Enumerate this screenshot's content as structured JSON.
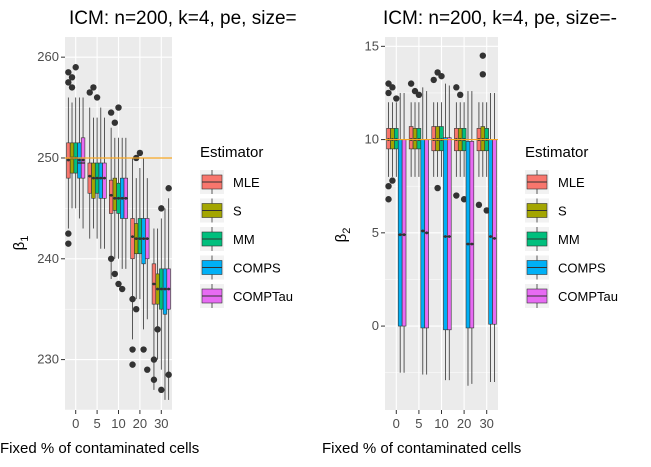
{
  "chart_data": [
    {
      "type": "box",
      "title": "ICM: n=200, k=4, pe, size=",
      "xlabel": "Fixed % of contaminated cells",
      "ylabel_base": "β",
      "ylabel_sub": "1",
      "categories": [
        "0",
        "5",
        "10",
        "20",
        "30"
      ],
      "ylim": [
        225,
        262
      ],
      "yticks": [
        230,
        240,
        250,
        260
      ],
      "true_value": 250,
      "legend_title": "Estimator",
      "series": [
        {
          "name": "MLE",
          "color": "#F8766D",
          "boxes": [
            {
              "q1": 248.0,
              "median": 249.8,
              "q3": 251.5,
              "lo": 243,
              "hi": 256,
              "mean": 249.8,
              "outliers": [
                258.5,
                257.5,
                242.5,
                241.5
              ]
            },
            {
              "q1": 246.5,
              "median": 248.2,
              "q3": 249.5,
              "lo": 242,
              "hi": 255,
              "mean": 248.2,
              "outliers": [
                256.5
              ]
            },
            {
              "q1": 244.5,
              "median": 246.3,
              "q3": 247.8,
              "lo": 238,
              "hi": 253,
              "mean": 246.3,
              "outliers": [
                254.5,
                240
              ]
            },
            {
              "q1": 240.0,
              "median": 242.2,
              "q3": 244.0,
              "lo": 232,
              "hi": 250,
              "mean": 242.2,
              "outliers": [
                236,
                231,
                229.5
              ]
            },
            {
              "q1": 235.5,
              "median": 237.5,
              "q3": 239.5,
              "lo": 227,
              "hi": 243,
              "mean": 237.5,
              "outliers": [
                230,
                228
              ]
            }
          ]
        },
        {
          "name": "S",
          "color": "#A3A500",
          "boxes": [
            {
              "q1": 248.5,
              "median": 250.0,
              "q3": 251.5,
              "lo": 245,
              "hi": 255.5,
              "mean": 250.0,
              "outliers": [
                258,
                257
              ]
            },
            {
              "q1": 246.0,
              "median": 248.0,
              "q3": 249.5,
              "lo": 243,
              "hi": 254,
              "mean": 248.0,
              "outliers": [
                257
              ]
            },
            {
              "q1": 244.8,
              "median": 246.0,
              "q3": 248.0,
              "lo": 240,
              "hi": 252,
              "mean": 246.0,
              "outliers": [
                253.5,
                238.5
              ]
            },
            {
              "q1": 240.5,
              "median": 242.0,
              "q3": 243.5,
              "lo": 236,
              "hi": 248,
              "mean": 242.0,
              "outliers": [
                250,
                235
              ]
            },
            {
              "q1": 235.5,
              "median": 237.0,
              "q3": 238.5,
              "lo": 230,
              "hi": 243,
              "mean": 237.0,
              "outliers": [
                233
              ]
            }
          ]
        },
        {
          "name": "MM",
          "color": "#00BF7D",
          "boxes": [
            {
              "q1": 248.5,
              "median": 250.0,
              "q3": 251.5,
              "lo": 245,
              "hi": 256,
              "mean": 250.0,
              "outliers": [
                259
              ]
            },
            {
              "q1": 246.5,
              "median": 248.0,
              "q3": 249.5,
              "lo": 242,
              "hi": 254,
              "mean": 248.0,
              "outliers": [
                256
              ]
            },
            {
              "q1": 244.5,
              "median": 246.0,
              "q3": 247.5,
              "lo": 240,
              "hi": 252,
              "mean": 246.0,
              "outliers": [
                255,
                237.5
              ]
            },
            {
              "q1": 240.5,
              "median": 242.0,
              "q3": 244.0,
              "lo": 236,
              "hi": 249,
              "mean": 242.0,
              "outliers": [
                250.5
              ]
            },
            {
              "q1": 235.0,
              "median": 237.0,
              "q3": 239.0,
              "lo": 229,
              "hi": 244,
              "mean": 237.0,
              "outliers": [
                245,
                227
              ]
            }
          ]
        },
        {
          "name": "COMPS",
          "color": "#00B0F6",
          "boxes": [
            {
              "q1": 248.0,
              "median": 249.5,
              "q3": 251.5,
              "lo": 244,
              "hi": 256,
              "mean": 249.8,
              "outliers": []
            },
            {
              "q1": 246.0,
              "median": 248.0,
              "q3": 249.5,
              "lo": 241,
              "hi": 255,
              "mean": 248.0,
              "outliers": []
            },
            {
              "q1": 244.0,
              "median": 246.0,
              "q3": 248.0,
              "lo": 239,
              "hi": 252,
              "mean": 246.0,
              "outliers": [
                237
              ]
            },
            {
              "q1": 239.5,
              "median": 242.0,
              "q3": 244.0,
              "lo": 233,
              "hi": 250,
              "mean": 242.0,
              "outliers": [
                231
              ]
            },
            {
              "q1": 234.5,
              "median": 237.0,
              "q3": 239.0,
              "lo": 226,
              "hi": 245,
              "mean": 237.0,
              "outliers": []
            }
          ]
        },
        {
          "name": "COMPTau",
          "color": "#E76BF3",
          "boxes": [
            {
              "q1": 248.0,
              "median": 249.5,
              "q3": 252.0,
              "lo": 243,
              "hi": 256,
              "mean": 249.8,
              "outliers": []
            },
            {
              "q1": 246.0,
              "median": 248.0,
              "q3": 249.5,
              "lo": 241,
              "hi": 254,
              "mean": 248.0,
              "outliers": []
            },
            {
              "q1": 244.0,
              "median": 246.0,
              "q3": 248.0,
              "lo": 239,
              "hi": 252,
              "mean": 246.0,
              "outliers": []
            },
            {
              "q1": 240.0,
              "median": 242.0,
              "q3": 244.0,
              "lo": 234,
              "hi": 248,
              "mean": 242.0,
              "outliers": [
                229
              ]
            },
            {
              "q1": 235.0,
              "median": 237.0,
              "q3": 239.0,
              "lo": 226,
              "hi": 246,
              "mean": 237.0,
              "outliers": [
                247,
                228.5
              ]
            }
          ]
        }
      ]
    },
    {
      "type": "box",
      "title": "ICM: n=200, k=4, pe, size=-",
      "xlabel": "Fixed % of contaminated cells",
      "ylabel_base": "β",
      "ylabel_sub": "2",
      "categories": [
        "0",
        "5",
        "10",
        "20",
        "30"
      ],
      "ylim": [
        -4.5,
        15.5
      ],
      "yticks": [
        0,
        5,
        10,
        15
      ],
      "true_value": 10,
      "legend_title": "Estimator",
      "series": [
        {
          "name": "MLE",
          "color": "#F8766D",
          "boxes": [
            {
              "q1": 9.5,
              "median": 10.0,
              "q3": 10.6,
              "lo": 8,
              "hi": 12,
              "mean": 10.0,
              "outliers": [
                13,
                12.5,
                7.5,
                6.8
              ]
            },
            {
              "q1": 9.5,
              "median": 10.0,
              "q3": 10.7,
              "lo": 8,
              "hi": 12,
              "mean": 10.0,
              "outliers": [
                13
              ]
            },
            {
              "q1": 9.4,
              "median": 10.0,
              "q3": 10.7,
              "lo": 8,
              "hi": 12,
              "mean": 10.0,
              "outliers": [
                13.2
              ]
            },
            {
              "q1": 9.4,
              "median": 10.0,
              "q3": 10.6,
              "lo": 8,
              "hi": 12,
              "mean": 10.0,
              "outliers": [
                12.8,
                7.0
              ]
            },
            {
              "q1": 9.4,
              "median": 10.0,
              "q3": 10.6,
              "lo": 8,
              "hi": 12,
              "mean": 10.0,
              "outliers": [
                6.5
              ]
            }
          ]
        },
        {
          "name": "S",
          "color": "#A3A500",
          "boxes": [
            {
              "q1": 9.5,
              "median": 10.0,
              "q3": 10.6,
              "lo": 8,
              "hi": 12,
              "mean": 10.0,
              "outliers": [
                12.8,
                7.8
              ]
            },
            {
              "q1": 9.5,
              "median": 10.0,
              "q3": 10.6,
              "lo": 8,
              "hi": 12,
              "mean": 10.0,
              "outliers": [
                12.6
              ]
            },
            {
              "q1": 9.4,
              "median": 10.0,
              "q3": 10.7,
              "lo": 8,
              "hi": 12,
              "mean": 10.0,
              "outliers": [
                13.6,
                7.4
              ]
            },
            {
              "q1": 9.4,
              "median": 10.0,
              "q3": 10.6,
              "lo": 8,
              "hi": 12,
              "mean": 10.0,
              "outliers": [
                12.4
              ]
            },
            {
              "q1": 9.4,
              "median": 10.0,
              "q3": 10.7,
              "lo": 8,
              "hi": 12,
              "mean": 10.0,
              "outliers": [
                14.5,
                13.5
              ]
            }
          ]
        },
        {
          "name": "MM",
          "color": "#00BF7D",
          "boxes": [
            {
              "q1": 9.5,
              "median": 10.0,
              "q3": 10.6,
              "lo": 8,
              "hi": 12,
              "mean": 10.0,
              "outliers": [
                12.2
              ]
            },
            {
              "q1": 9.5,
              "median": 10.0,
              "q3": 10.6,
              "lo": 8,
              "hi": 12,
              "mean": 10.0,
              "outliers": [
                12.4
              ]
            },
            {
              "q1": 9.4,
              "median": 10.0,
              "q3": 10.7,
              "lo": 8,
              "hi": 12,
              "mean": 10.0,
              "outliers": [
                13.4
              ]
            },
            {
              "q1": 9.4,
              "median": 10.0,
              "q3": 10.6,
              "lo": 8,
              "hi": 12,
              "mean": 10.0,
              "outliers": [
                6.8
              ]
            },
            {
              "q1": 9.4,
              "median": 10.0,
              "q3": 10.6,
              "lo": 8,
              "hi": 12,
              "mean": 10.0,
              "outliers": [
                6.2
              ]
            }
          ]
        },
        {
          "name": "COMPS",
          "color": "#00B0F6",
          "boxes": [
            {
              "q1": 0.0,
              "median": 4.9,
              "q3": 10.0,
              "lo": -2.5,
              "hi": 12.5,
              "mean": 4.9,
              "outliers": []
            },
            {
              "q1": -0.1,
              "median": 5.1,
              "q3": 10.0,
              "lo": -2.6,
              "hi": 12.8,
              "mean": 5.1,
              "outliers": []
            },
            {
              "q1": -0.2,
              "median": 4.8,
              "q3": 10.1,
              "lo": -2.9,
              "hi": 13.0,
              "mean": 4.8,
              "outliers": []
            },
            {
              "q1": -0.1,
              "median": 4.4,
              "q3": 9.9,
              "lo": -3.2,
              "hi": 12.6,
              "mean": 4.4,
              "outliers": []
            },
            {
              "q1": 0.1,
              "median": 4.8,
              "q3": 10.0,
              "lo": -3.0,
              "hi": 12.5,
              "mean": 4.8,
              "outliers": []
            }
          ]
        },
        {
          "name": "COMPTau",
          "color": "#E76BF3",
          "boxes": [
            {
              "q1": 0.0,
              "median": 4.9,
              "q3": 10.0,
              "lo": -2.5,
              "hi": 12.5,
              "mean": 4.9,
              "outliers": []
            },
            {
              "q1": -0.1,
              "median": 5.0,
              "q3": 10.0,
              "lo": -2.6,
              "hi": 12.6,
              "mean": 5.0,
              "outliers": []
            },
            {
              "q1": -0.2,
              "median": 4.8,
              "q3": 10.1,
              "lo": -2.9,
              "hi": 12.9,
              "mean": 4.8,
              "outliers": []
            },
            {
              "q1": -0.1,
              "median": 4.4,
              "q3": 9.9,
              "lo": -3.1,
              "hi": 12.6,
              "mean": 4.4,
              "outliers": []
            },
            {
              "q1": 0.1,
              "median": 4.7,
              "q3": 10.0,
              "lo": -3.0,
              "hi": 12.5,
              "mean": 4.7,
              "outliers": []
            }
          ]
        }
      ]
    }
  ]
}
